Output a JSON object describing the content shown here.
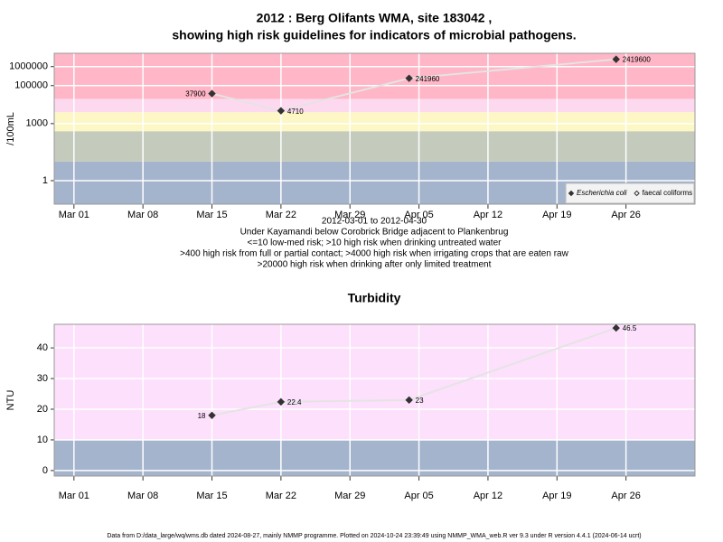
{
  "chart_data": [
    {
      "type": "line",
      "title": "2012 : Berg Olifants WMA, site 183042 ,",
      "subtitle": "showing high risk guidelines for indicators of microbial pathogens.",
      "ylabel": "/100mL",
      "ylog": true,
      "x": [
        "2012-03-15",
        "2012-03-22",
        "2012-04-04",
        "2012-04-25"
      ],
      "series": [
        {
          "name": "Escherichia coli",
          "color": "#333333",
          "marker_fill": "#333333",
          "values": [
            37900,
            4710,
            241960,
            2419600
          ]
        },
        {
          "name": "faecal coliforms",
          "color": "#333333",
          "marker_fill": "#ffffff",
          "values": [
            null,
            null,
            null,
            null
          ]
        }
      ],
      "line_color": "#e4e4e4",
      "xlim": [
        "2012-02-28",
        "2012-05-03"
      ],
      "xticks": [
        {
          "value": "2012-03-01",
          "label": "Mar 01"
        },
        {
          "value": "2012-03-08",
          "label": "Mar 08"
        },
        {
          "value": "2012-03-15",
          "label": "Mar 15"
        },
        {
          "value": "2012-03-22",
          "label": "Mar 22"
        },
        {
          "value": "2012-03-29",
          "label": "Mar 29"
        },
        {
          "value": "2012-04-05",
          "label": "Apr 05"
        },
        {
          "value": "2012-04-12",
          "label": "Apr 12"
        },
        {
          "value": "2012-04-19",
          "label": "Apr 19"
        },
        {
          "value": "2012-04-26",
          "label": "Apr 26"
        }
      ],
      "ylim": [
        0.058,
        5000000
      ],
      "yticks": [
        1,
        1000,
        100000,
        1000000
      ],
      "grid": true,
      "band_breaks": [
        10,
        400,
        4000,
        20000
      ],
      "band_colors": [
        "#a3b4cc",
        "#c4cbbd",
        "#fdf7c6",
        "#fdd9f0",
        "#ffb6c6"
      ],
      "legend": "bottom-right",
      "notes": [
        "2012-03-01 to 2012-04-30",
        "Under Kayamandi below Corobrick Bridge adjacent to Plankenbrug",
        "<=10 low-med risk; >10 high risk when drinking untreated water",
        ">400 high risk from full or partial contact; >4000 high risk when irrigating crops that are eaten raw",
        ">20000 high risk when drinking after only limited treatment"
      ]
    },
    {
      "type": "line",
      "title": "Turbidity",
      "ylabel": "NTU",
      "ylog": false,
      "x": [
        "2012-03-15",
        "2012-03-22",
        "2012-04-04",
        "2012-04-25"
      ],
      "series": [
        {
          "name": "Turbidity",
          "color": "#333333",
          "marker_fill": "#333333",
          "values": [
            18,
            22.4,
            23,
            46.5
          ]
        }
      ],
      "line_color": "#e4e4e4",
      "xlim": [
        "2012-02-28",
        "2012-05-03"
      ],
      "xticks": [
        {
          "value": "2012-03-01",
          "label": "Mar 01"
        },
        {
          "value": "2012-03-08",
          "label": "Mar 08"
        },
        {
          "value": "2012-03-15",
          "label": "Mar 15"
        },
        {
          "value": "2012-03-22",
          "label": "Mar 22"
        },
        {
          "value": "2012-03-29",
          "label": "Mar 29"
        },
        {
          "value": "2012-04-05",
          "label": "Apr 05"
        },
        {
          "value": "2012-04-12",
          "label": "Apr 12"
        },
        {
          "value": "2012-04-19",
          "label": "Apr 19"
        },
        {
          "value": "2012-04-26",
          "label": "Apr 26"
        }
      ],
      "ylim": [
        -1.8,
        47.7
      ],
      "yticks": [
        0,
        10,
        20,
        30,
        40
      ],
      "grid": true,
      "band_breaks": [
        10
      ],
      "band_colors": [
        "#a3b4cc",
        "#fde0fc"
      ]
    }
  ],
  "footer": "Data from D:/data_large/wq/wms.db dated 2024-08-27, mainly NMMP programme. Plotted on 2024-10-24 23:39:49 using NMMP_WMA_web.R ver 9.3 under R version 4.4.1 (2024-06-14 ucrt)"
}
